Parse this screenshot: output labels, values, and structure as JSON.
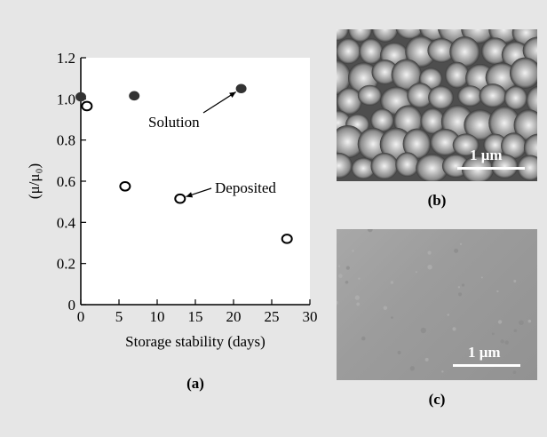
{
  "chart_data": {
    "type": "scatter",
    "title": "",
    "xlabel": "Storage stability (days)",
    "ylabel": "(μ/μ₀)",
    "xlim": [
      0,
      30
    ],
    "ylim": [
      0,
      1.2
    ],
    "x_ticks": [
      0,
      5,
      10,
      15,
      20,
      25,
      30
    ],
    "y_ticks": [
      0,
      0.2,
      0.4,
      0.6,
      0.8,
      1.0,
      1.2
    ],
    "x_tick_labels": [
      "0",
      "5",
      "10",
      "15",
      "20",
      "25",
      "30"
    ],
    "y_tick_labels": [
      "0",
      "0.2",
      "0.4",
      "0.6",
      "0.8",
      "1.0",
      "1.2"
    ],
    "grid": false,
    "series": [
      {
        "name": "Solution",
        "marker": "filled-circle",
        "x": [
          0,
          7,
          21
        ],
        "y": [
          1.01,
          1.015,
          1.05
        ]
      },
      {
        "name": "Deposited",
        "marker": "open-circle",
        "x": [
          0.8,
          5.8,
          13,
          27
        ],
        "y": [
          0.965,
          0.575,
          0.515,
          0.32
        ]
      }
    ],
    "annotations": [
      {
        "text": "Solution",
        "arrow_to_series": "Solution",
        "arrow_to_point_index": 2
      },
      {
        "text": "Deposited",
        "arrow_to_series": "Deposited",
        "arrow_to_point_index": 2
      }
    ]
  },
  "panels": {
    "a_label": "(a)",
    "b_label": "(b)",
    "c_label": "(c)",
    "b_scale": "1 μm",
    "c_scale": "1 μm"
  },
  "colors": {
    "background": "#e6e6e6",
    "plot_bg": "#ffffff",
    "marker": "#333333"
  }
}
